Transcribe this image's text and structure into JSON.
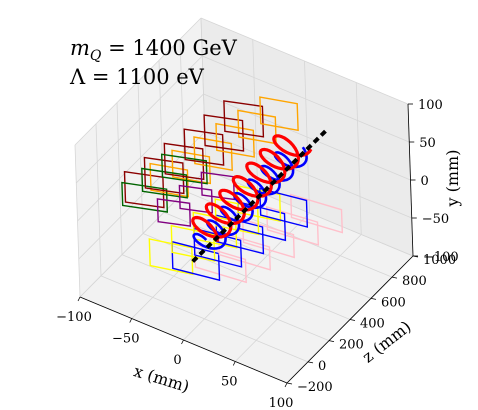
{
  "chart_data": {
    "type": "3d-line",
    "annotations": [
      "m_Q = 1400 GeV",
      "Λ = 1100 eV"
    ],
    "xlabel": "x (mm)",
    "ylabel": "y (mm)",
    "zlabel": "z (mm)",
    "xlim": [
      -100,
      100
    ],
    "ylim": [
      -100,
      100
    ],
    "zlim": [
      -200,
      1000
    ],
    "xticks": [
      "−100",
      "−50",
      "0",
      "50",
      "100"
    ],
    "yticks": [
      "−100",
      "−50",
      "0",
      "50",
      "100"
    ],
    "zticks": [
      "−200",
      "0",
      "200",
      "400",
      "600",
      "800",
      "1000"
    ],
    "grid": true,
    "series": [
      {
        "color": "#000000",
        "style": "dashed",
        "note": "straight track from origin"
      },
      {
        "color": "#ff0000",
        "style": "helix"
      },
      {
        "color": "#0000ff",
        "style": "helix"
      },
      {
        "color": "#8b0000"
      },
      {
        "color": "#ffa500"
      },
      {
        "color": "#006400"
      },
      {
        "color": "#800080"
      },
      {
        "color": "#ffc0cb"
      },
      {
        "color": "#ffff00"
      }
    ]
  }
}
